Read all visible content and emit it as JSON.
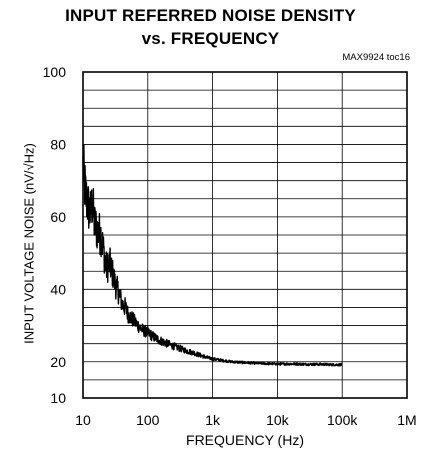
{
  "chart_data": {
    "type": "line",
    "title": "INPUT REFERRED NOISE DENSITY",
    "subtitle": "vs. FREQUENCY",
    "annotation": "MAX9924 toc16",
    "xlabel": "FREQUENCY (Hz)",
    "ylabel": "INPUT VOLTAGE NOISE (nV/√Hz)",
    "x_scale": "log",
    "xlim": [
      10,
      1000000
    ],
    "ylim": [
      10,
      100
    ],
    "x_ticks": [
      10,
      100,
      1000,
      10000,
      100000,
      1000000
    ],
    "x_tick_labels": [
      "10",
      "100",
      "1k",
      "10k",
      "100k",
      "1M"
    ],
    "y_ticks": [
      10,
      20,
      40,
      60,
      80,
      100
    ],
    "y_tick_labels": [
      "10",
      "20",
      "40",
      "60",
      "80",
      "100"
    ],
    "grid": true,
    "line_color": "#000000",
    "series": [
      {
        "x": [
          10,
          11,
          12,
          13,
          14,
          15,
          17,
          19,
          21,
          23,
          26,
          29,
          32,
          36,
          40,
          45,
          50,
          56,
          63,
          71,
          80,
          90,
          100,
          120,
          150,
          200,
          250,
          300,
          400,
          500,
          600,
          700,
          800,
          1000,
          1500,
          2000,
          3000,
          5000,
          7000,
          10000,
          20000,
          30000,
          50000,
          70000,
          100000
        ],
        "values": [
          74,
          66,
          63,
          61,
          64,
          58,
          56,
          55,
          50,
          46,
          47,
          44,
          41,
          39,
          36,
          35,
          33,
          32,
          31,
          30,
          29,
          28.5,
          28,
          27,
          26,
          25,
          24.3,
          23.8,
          23,
          22.5,
          22,
          21.6,
          21.2,
          20.8,
          20.3,
          20,
          19.8,
          19.6,
          19.5,
          19.4,
          19.4,
          19.3,
          19.3,
          19.2,
          19.2
        ]
      }
    ]
  }
}
